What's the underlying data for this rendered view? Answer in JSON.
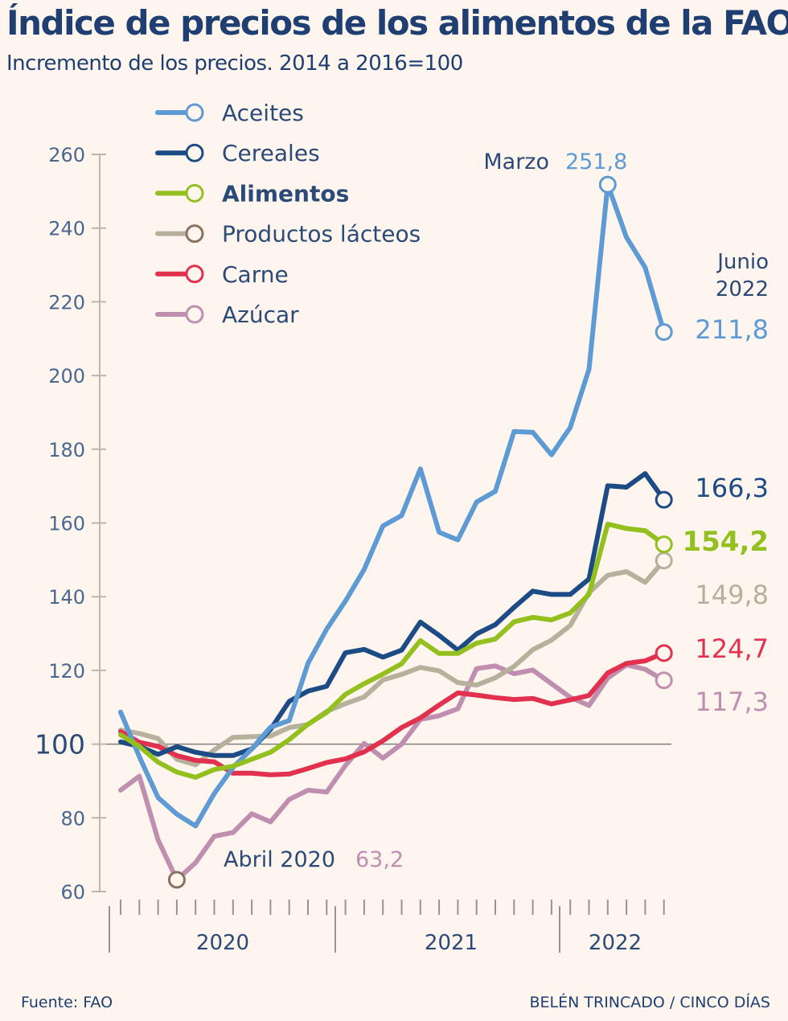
{
  "title": "Índice de precios de los alimentos de la FAO",
  "subtitle": "Incremento de los precios. 2014 a 2016=100",
  "footer": {
    "source": "Fuente: FAO",
    "credit": "BELÉN TRINCADO / CINCO DÍAS"
  },
  "chart_data": {
    "type": "line",
    "title": "Índice de precios de los alimentos de la FAO",
    "ylim": [
      60,
      260
    ],
    "yticks": [
      60,
      80,
      100,
      120,
      140,
      160,
      180,
      200,
      220,
      240,
      260
    ],
    "reference_value": 100,
    "x_labels": [
      "2020",
      "2021",
      "2022"
    ],
    "x": [
      "2020-01",
      "2020-02",
      "2020-03",
      "2020-04",
      "2020-05",
      "2020-06",
      "2020-07",
      "2020-08",
      "2020-09",
      "2020-10",
      "2020-11",
      "2020-12",
      "2021-01",
      "2021-02",
      "2021-03",
      "2021-04",
      "2021-05",
      "2021-06",
      "2021-07",
      "2021-08",
      "2021-09",
      "2021-10",
      "2021-11",
      "2021-12",
      "2022-01",
      "2022-02",
      "2022-03",
      "2022-04",
      "2022-05",
      "2022-06"
    ],
    "series": [
      {
        "name": "Aceites",
        "key": "aceites",
        "color": "#5e9ad4",
        "bold": false,
        "values": [
          108.7,
          96.6,
          85.5,
          81.0,
          77.8,
          86.6,
          93.7,
          98.7,
          104.6,
          106.4,
          121.9,
          131.2,
          138.8,
          147.4,
          159.2,
          162.0,
          174.7,
          157.5,
          155.4,
          165.7,
          168.6,
          184.8,
          184.6,
          178.5,
          185.9,
          201.7,
          251.8,
          237.5,
          229.3,
          211.8
        ]
      },
      {
        "name": "Cereales",
        "key": "cereales",
        "color": "#1d4b85",
        "bold": false,
        "values": [
          100.6,
          99.4,
          97.2,
          99.3,
          97.8,
          96.9,
          96.9,
          98.7,
          104.0,
          111.6,
          114.4,
          115.7,
          124.8,
          125.7,
          123.6,
          125.5,
          133.1,
          129.5,
          125.5,
          129.9,
          132.4,
          137.1,
          141.5,
          140.6,
          140.6,
          144.8,
          170.1,
          169.7,
          173.4,
          166.3
        ]
      },
      {
        "name": "Alimentos",
        "key": "alimentos",
        "color": "#93c01f",
        "bold": true,
        "values": [
          102.5,
          99.4,
          95.1,
          92.4,
          91.0,
          93.1,
          94.0,
          95.9,
          97.8,
          101.2,
          105.4,
          108.6,
          113.5,
          116.4,
          119.0,
          121.8,
          128.1,
          124.6,
          124.6,
          127.4,
          128.5,
          133.2,
          134.4,
          133.7,
          135.6,
          140.6,
          159.7,
          158.5,
          157.9,
          154.2
        ]
      },
      {
        "name": "Productos lácteos",
        "key": "lacteos",
        "color": "#b6b19c",
        "bold": false,
        "values": [
          103.8,
          102.9,
          101.5,
          95.9,
          94.4,
          98.4,
          101.8,
          102.0,
          102.2,
          104.5,
          105.3,
          108.9,
          111.0,
          112.8,
          117.4,
          118.9,
          120.8,
          119.9,
          116.7,
          116.0,
          118.0,
          121.1,
          125.6,
          128.2,
          132.2,
          141.1,
          145.8,
          146.8,
          143.9,
          149.8
        ]
      },
      {
        "name": "Carne",
        "key": "carne",
        "color": "#e1314f",
        "bold": false,
        "values": [
          103.4,
          100.5,
          99.4,
          96.9,
          95.6,
          95.2,
          92.1,
          92.1,
          91.7,
          91.9,
          93.4,
          95.0,
          96.0,
          97.9,
          100.9,
          104.5,
          107.1,
          110.6,
          113.9,
          113.3,
          112.6,
          112.1,
          112.4,
          110.9,
          112.0,
          113.2,
          119.3,
          121.9,
          122.6,
          124.7
        ]
      },
      {
        "name": "Azúcar",
        "key": "azucar",
        "color": "#c08fb0",
        "bold": false,
        "values": [
          87.5,
          91.3,
          74.0,
          63.2,
          67.8,
          75.0,
          76.0,
          81.1,
          78.9,
          85.0,
          87.5,
          87.0,
          94.2,
          100.2,
          96.2,
          100.0,
          106.7,
          107.7,
          109.6,
          120.5,
          121.2,
          119.1,
          120.1,
          116.4,
          112.7,
          110.5,
          117.9,
          121.5,
          120.3,
          117.3
        ]
      }
    ],
    "legend": {
      "placement": "top-left"
    },
    "annotations": {
      "marzo_label": "Marzo",
      "marzo_value": "251,8",
      "abril_label": "Abril 2020",
      "abril_value": "63,2",
      "junio_line1": "Junio",
      "junio_line2": "2022",
      "end_labels": {
        "aceites": "211,8",
        "cereales": "166,3",
        "alimentos": "154,2",
        "lacteos": "149,8",
        "carne": "124,7",
        "azucar": "117,3"
      }
    }
  }
}
